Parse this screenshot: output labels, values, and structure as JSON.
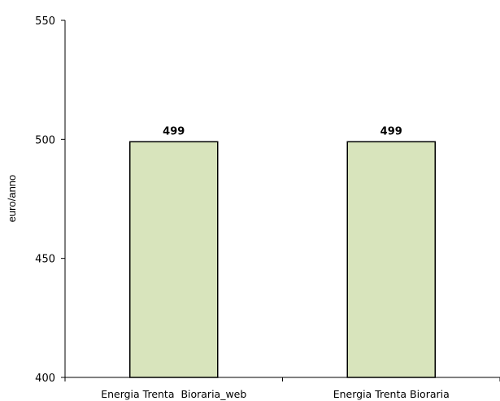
{
  "chart_data": {
    "type": "bar",
    "categories": [
      "Energia Trenta  Bioraria_web",
      "Energia Trenta Bioraria"
    ],
    "values": [
      499,
      499
    ],
    "data_labels": [
      "499",
      "499"
    ],
    "title": "",
    "xlabel": "",
    "ylabel": "euro/anno",
    "ylim": [
      400,
      550
    ],
    "yticks": [
      400,
      450,
      500,
      550
    ],
    "grid": false,
    "legend": "none",
    "bar_color": "#d8e4bc",
    "bar_edge_color": "#000000"
  }
}
